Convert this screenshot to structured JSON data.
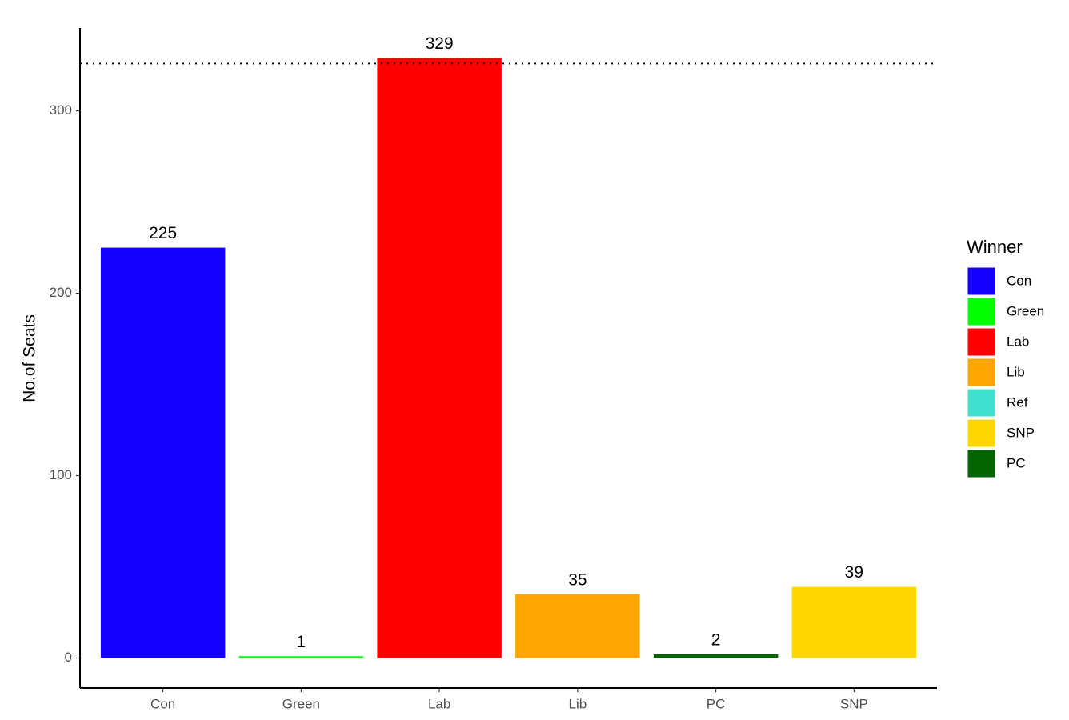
{
  "chart_data": {
    "type": "bar",
    "y_label": "No.of Seats",
    "categories": [
      "Con",
      "Green",
      "Lab",
      "Lib",
      "PC",
      "SNP"
    ],
    "values": [
      225,
      1,
      329,
      35,
      2,
      39
    ],
    "ylim": [
      -16.45,
      345.45
    ],
    "yticks": [
      0,
      100,
      200,
      300
    ],
    "hline": 326,
    "legend": {
      "title": "Winner",
      "items": [
        {
          "name": "Con",
          "color": "#1400ff"
        },
        {
          "name": "Green",
          "color": "#00ff00"
        },
        {
          "name": "Lab",
          "color": "#ff0000"
        },
        {
          "name": "Lib",
          "color": "#ffa500"
        },
        {
          "name": "Ref",
          "color": "#40e0d0"
        },
        {
          "name": "SNP",
          "color": "#ffd700"
        },
        {
          "name": "PC",
          "color": "#006400"
        }
      ]
    }
  }
}
